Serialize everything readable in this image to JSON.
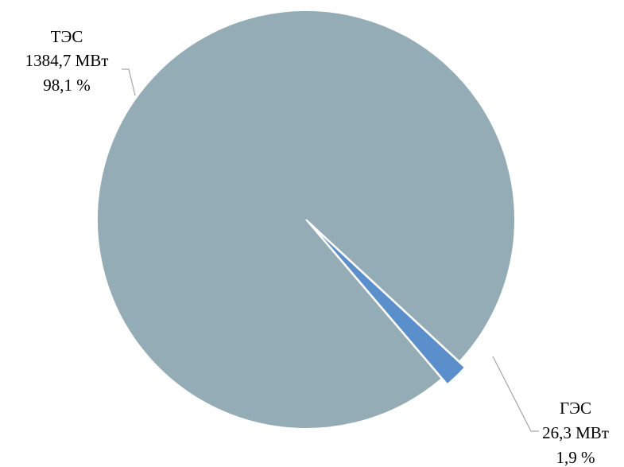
{
  "chart_data": {
    "type": "pie",
    "slices": [
      {
        "name": "ТЭС",
        "value_text": "1384,7 МВт",
        "value": 1384.7,
        "percent_text": "98,1 %",
        "percent": 98.1,
        "color": "#94acb5"
      },
      {
        "name": "ГЭС",
        "value_text": "26,3 МВт",
        "value": 26.3,
        "percent_text": "1,9 %",
        "percent": 1.9,
        "color": "#5b8fcc"
      }
    ],
    "unit": "МВт",
    "legend": "none",
    "data_labels": "outside"
  }
}
